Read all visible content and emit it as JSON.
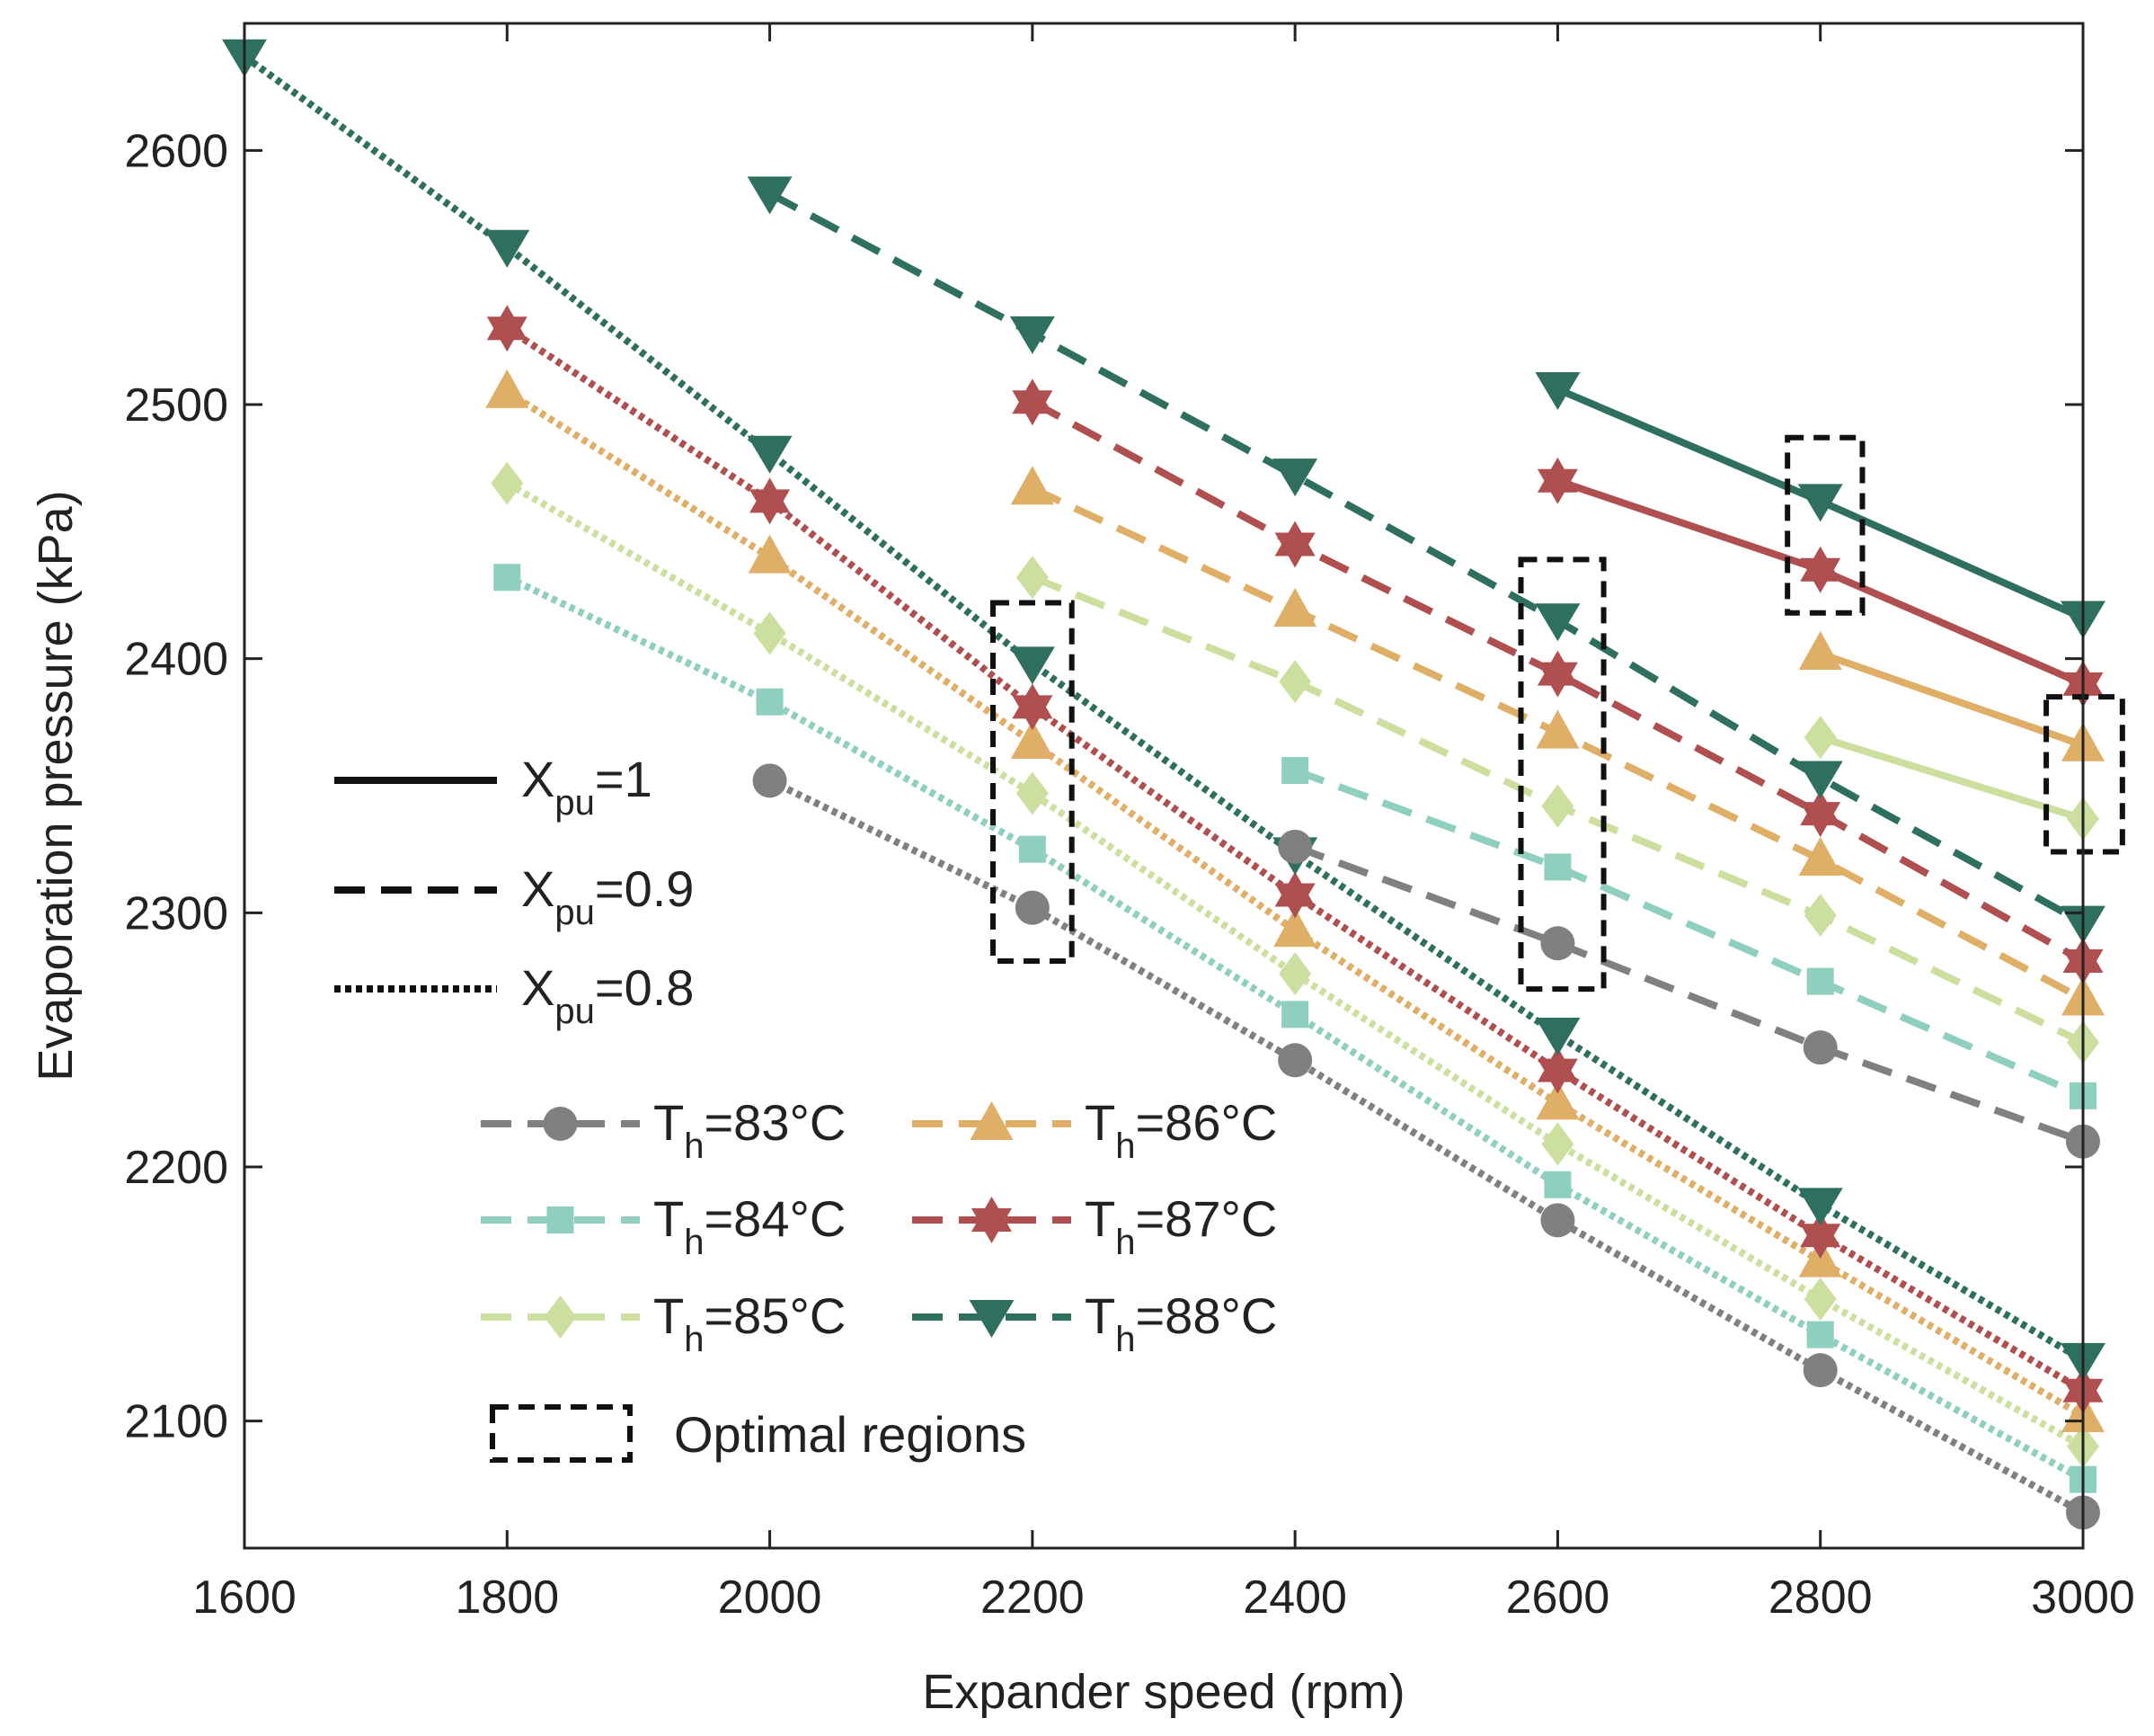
{
  "chart_data": {
    "type": "line",
    "title": "",
    "xlabel": "Expander speed (rpm)",
    "ylabel": "Evaporation pressure (kPa)",
    "xlim": [
      1600,
      3000
    ],
    "ylim": [
      2050,
      2650
    ],
    "xticks": [
      1600,
      1800,
      2000,
      2200,
      2400,
      2600,
      2800,
      3000
    ],
    "yticks": [
      2100,
      2200,
      2300,
      2400,
      2500,
      2600
    ],
    "grid": false,
    "styles": [
      {
        "id": "solid",
        "label_main": "X",
        "label_sub": "pu",
        "label_rest": "=1"
      },
      {
        "id": "dashed",
        "label_main": "X",
        "label_sub": "pu",
        "label_rest": "=0.9"
      },
      {
        "id": "dotted",
        "label_main": "X",
        "label_sub": "pu",
        "label_rest": "=0.8"
      }
    ],
    "temperatures": [
      {
        "key": "t83",
        "label_main": "T",
        "label_sub": "h",
        "label_rest": "=83°C",
        "color": "#808080",
        "marker": "circle"
      },
      {
        "key": "t84",
        "label_main": "T",
        "label_sub": "h",
        "label_rest": "=84°C",
        "color": "#8fcfbf",
        "marker": "square"
      },
      {
        "key": "t85",
        "label_main": "T",
        "label_sub": "h",
        "label_rest": "=85°C",
        "color": "#ccdf9f",
        "marker": "diamond"
      },
      {
        "key": "t86",
        "label_main": "T",
        "label_sub": "h",
        "label_rest": "=86°C",
        "color": "#dfaf67",
        "marker": "triangle-up"
      },
      {
        "key": "t87",
        "label_main": "T",
        "label_sub": "h",
        "label_rest": "=87°C",
        "color": "#af4f4f",
        "marker": "star"
      },
      {
        "key": "t88",
        "label_main": "T",
        "label_sub": "h",
        "label_rest": "=88°C",
        "color": "#2f6f5f",
        "marker": "triangle-down"
      }
    ],
    "series": [
      {
        "temp": "t83",
        "style": "dotted",
        "x": [
          2000,
          2200,
          2400,
          2600,
          2800,
          3000
        ],
        "values": [
          2352,
          2302,
          2242,
          2179,
          2120,
          2064
        ]
      },
      {
        "temp": "t84",
        "style": "dotted",
        "x": [
          1800,
          2000,
          2200,
          2400,
          2600,
          2800,
          3000
        ],
        "values": [
          2432,
          2383,
          2325,
          2260,
          2193,
          2134,
          2077
        ]
      },
      {
        "temp": "t85",
        "style": "dotted",
        "x": [
          1800,
          2000,
          2200,
          2400,
          2600,
          2800,
          3000
        ],
        "values": [
          2469,
          2410,
          2347,
          2276,
          2209,
          2148,
          2090
        ]
      },
      {
        "temp": "t86",
        "style": "dotted",
        "x": [
          1800,
          2000,
          2200,
          2400,
          2600,
          2800,
          3000
        ],
        "values": [
          2505,
          2440,
          2367,
          2293,
          2225,
          2163,
          2102
        ]
      },
      {
        "temp": "t87",
        "style": "dotted",
        "x": [
          1800,
          2000,
          2200,
          2400,
          2600,
          2800,
          3000
        ],
        "values": [
          2530,
          2462,
          2381,
          2307,
          2238,
          2173,
          2112
        ]
      },
      {
        "temp": "t88",
        "style": "dotted",
        "x": [
          1600,
          1800,
          2000,
          2200,
          2400,
          2600,
          2800,
          3000
        ],
        "values": [
          2637,
          2562,
          2481,
          2398,
          2323,
          2252,
          2185,
          2124
        ]
      },
      {
        "temp": "t83",
        "style": "dashed",
        "x": [
          2400,
          2600,
          2800,
          3000
        ],
        "values": [
          2326,
          2288,
          2247,
          2210
        ]
      },
      {
        "temp": "t84",
        "style": "dashed",
        "x": [
          2400,
          2600,
          2800,
          3000
        ],
        "values": [
          2356,
          2318,
          2273,
          2228
        ]
      },
      {
        "temp": "t85",
        "style": "dashed",
        "x": [
          2200,
          2400,
          2600,
          2800,
          3000
        ],
        "values": [
          2432,
          2391,
          2342,
          2299,
          2249
        ]
      },
      {
        "temp": "t86",
        "style": "dashed",
        "x": [
          2200,
          2400,
          2600,
          2800,
          3000
        ],
        "values": [
          2467,
          2419,
          2371,
          2321,
          2266
        ]
      },
      {
        "temp": "t87",
        "style": "dashed",
        "x": [
          2200,
          2400,
          2600,
          2800,
          3000
        ],
        "values": [
          2501,
          2445,
          2394,
          2339,
          2281
        ]
      },
      {
        "temp": "t88",
        "style": "dashed",
        "x": [
          2000,
          2200,
          2400,
          2600,
          2800,
          3000
        ],
        "values": [
          2583,
          2528,
          2472,
          2415,
          2353,
          2296
        ]
      },
      {
        "temp": "t85",
        "style": "solid",
        "x": [
          2800,
          3000
        ],
        "values": [
          2369,
          2337
        ]
      },
      {
        "temp": "t86",
        "style": "solid",
        "x": [
          2800,
          3000
        ],
        "values": [
          2402,
          2366
        ]
      },
      {
        "temp": "t87",
        "style": "solid",
        "x": [
          2600,
          2800,
          3000
        ],
        "values": [
          2470,
          2435,
          2390
        ]
      },
      {
        "temp": "t88",
        "style": "solid",
        "x": [
          2600,
          2800,
          3000
        ],
        "values": [
          2506,
          2462,
          2416
        ]
      }
    ],
    "optimal_regions": [
      {
        "x": [
          2170,
          2230
        ],
        "y": [
          2281,
          2422
        ]
      },
      {
        "x": [
          2572,
          2635
        ],
        "y": [
          2270,
          2439
        ]
      },
      {
        "x": [
          2775,
          2832
        ],
        "y": [
          2418,
          2487
        ]
      },
      {
        "x": [
          2972,
          3030
        ],
        "y": [
          2324,
          2385
        ]
      }
    ],
    "optimal_label": "Optimal regions"
  }
}
